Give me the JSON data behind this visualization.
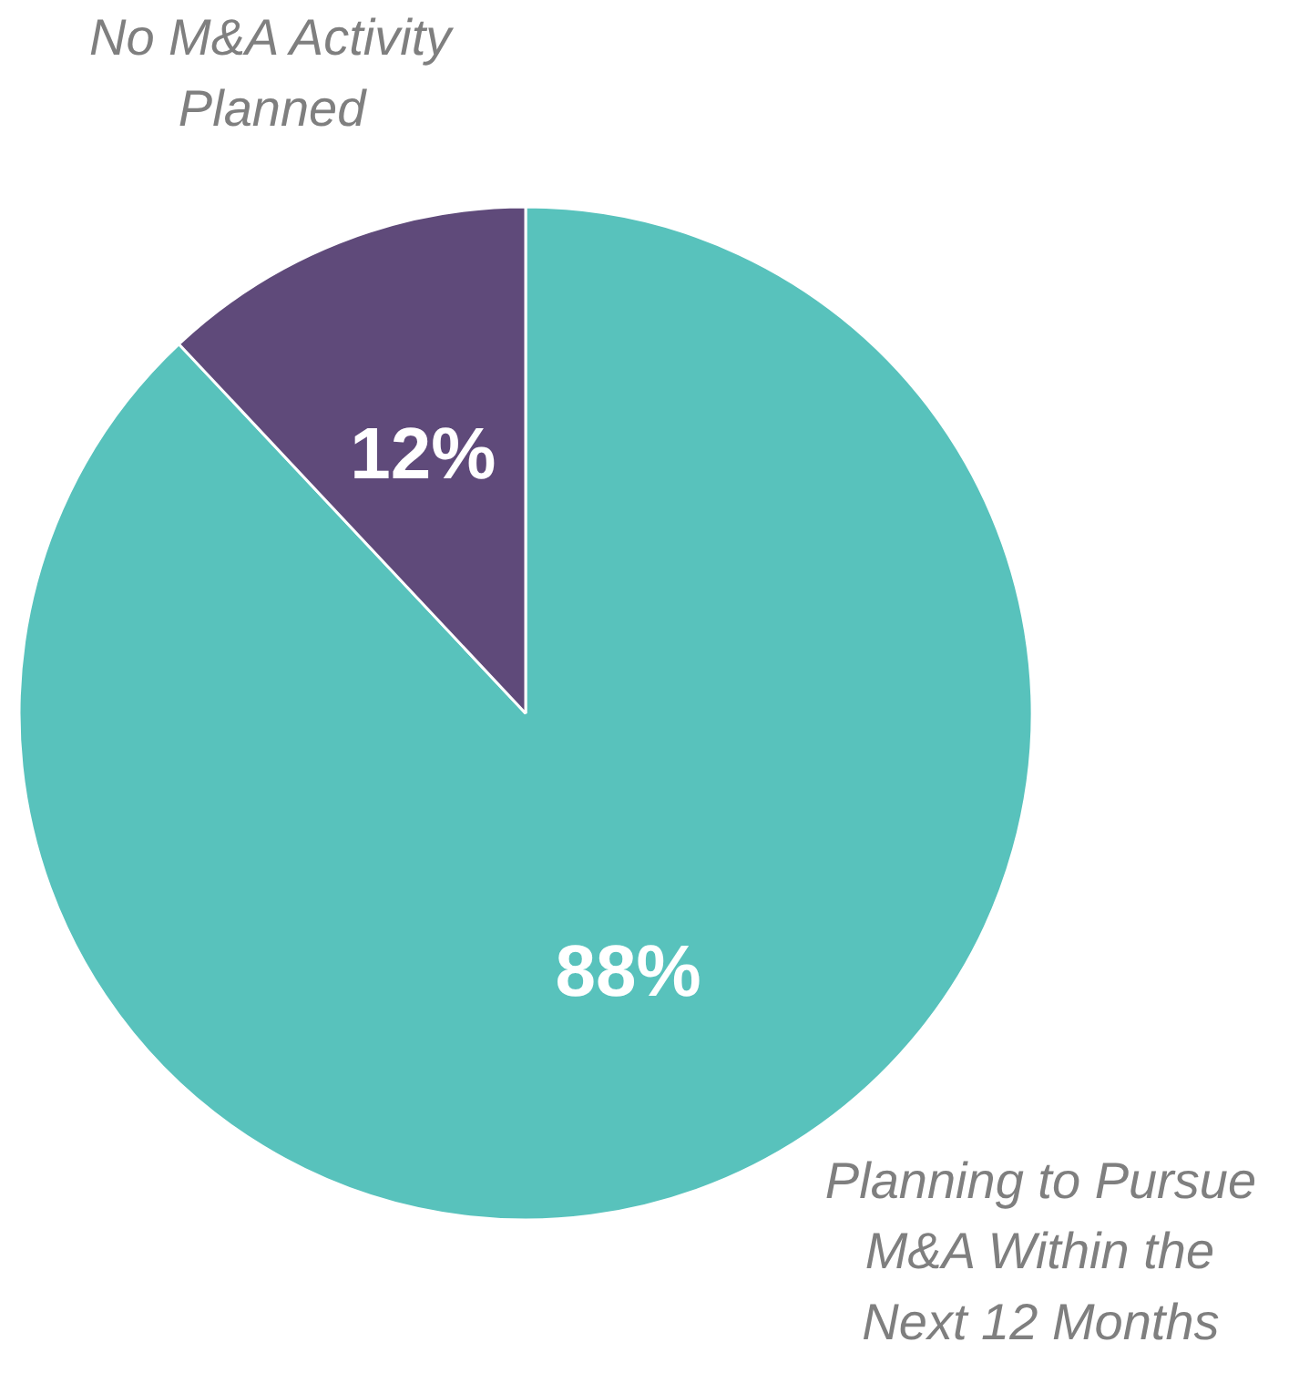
{
  "chart_data": {
    "type": "pie",
    "categories": [
      "Planning to Pursue\nM&A Within the\nNext 12 Months",
      "No M&A Activity\nPlanned"
    ],
    "values": [
      88,
      12
    ],
    "colors": [
      "#58c2bc",
      "#5f4a7a"
    ],
    "value_labels": [
      "88%",
      "12%"
    ]
  }
}
